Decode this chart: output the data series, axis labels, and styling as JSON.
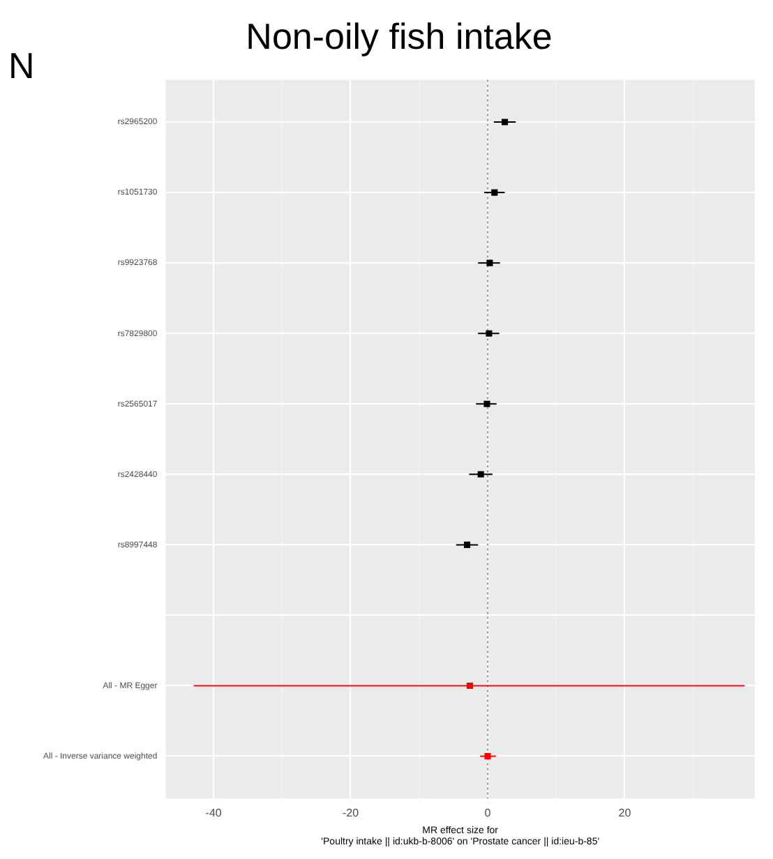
{
  "chart_data": {
    "type": "scatter",
    "title": "Non-oily fish intake",
    "annotations": [
      "N"
    ],
    "xlabel": "MR effect size for\n'Poultry intake || id:ukb-b-8006' on 'Prostate cancer || id:ieu-b-85'",
    "orientation": "horizontal",
    "categories": [
      "rs2965200",
      "rs1051730",
      "rs9923768",
      "rs7829800",
      "rs2565017",
      "rs2428440",
      "rs8997448",
      null,
      "All - MR Egger",
      "All - Inverse variance weighted"
    ],
    "values": [
      2.5,
      1.0,
      0.3,
      0.2,
      -0.1,
      -1.0,
      -3.0,
      null,
      -2.6,
      0.0
    ],
    "errors": [
      [
        0.9,
        4.1
      ],
      [
        -0.5,
        2.5
      ],
      [
        -1.4,
        1.8
      ],
      [
        -1.4,
        1.7
      ],
      [
        -1.7,
        1.3
      ],
      [
        -2.7,
        0.7
      ],
      [
        -4.6,
        -1.4
      ],
      null,
      [
        -42.9,
        37.5
      ],
      [
        -1.1,
        1.2
      ]
    ],
    "colors": [
      "#000000",
      "#000000",
      "#000000",
      "#000000",
      "#000000",
      "#000000",
      "#000000",
      "#000000",
      "#ff0000",
      "#ff0000"
    ],
    "xlim": [
      -47,
      39
    ],
    "xticks": [
      -40,
      {
        "value": -30,
        "label": null
      },
      -20,
      {
        "value": -10,
        "label": null
      },
      0,
      {
        "value": 10,
        "label": null
      },
      20,
      {
        "value": 30,
        "label": null
      }
    ],
    "ref_lines": [
      {
        "axis": "x",
        "value": 0,
        "line_style": "dotted",
        "color": "#999999"
      }
    ],
    "grid": true,
    "legend": false,
    "marker": "square"
  }
}
